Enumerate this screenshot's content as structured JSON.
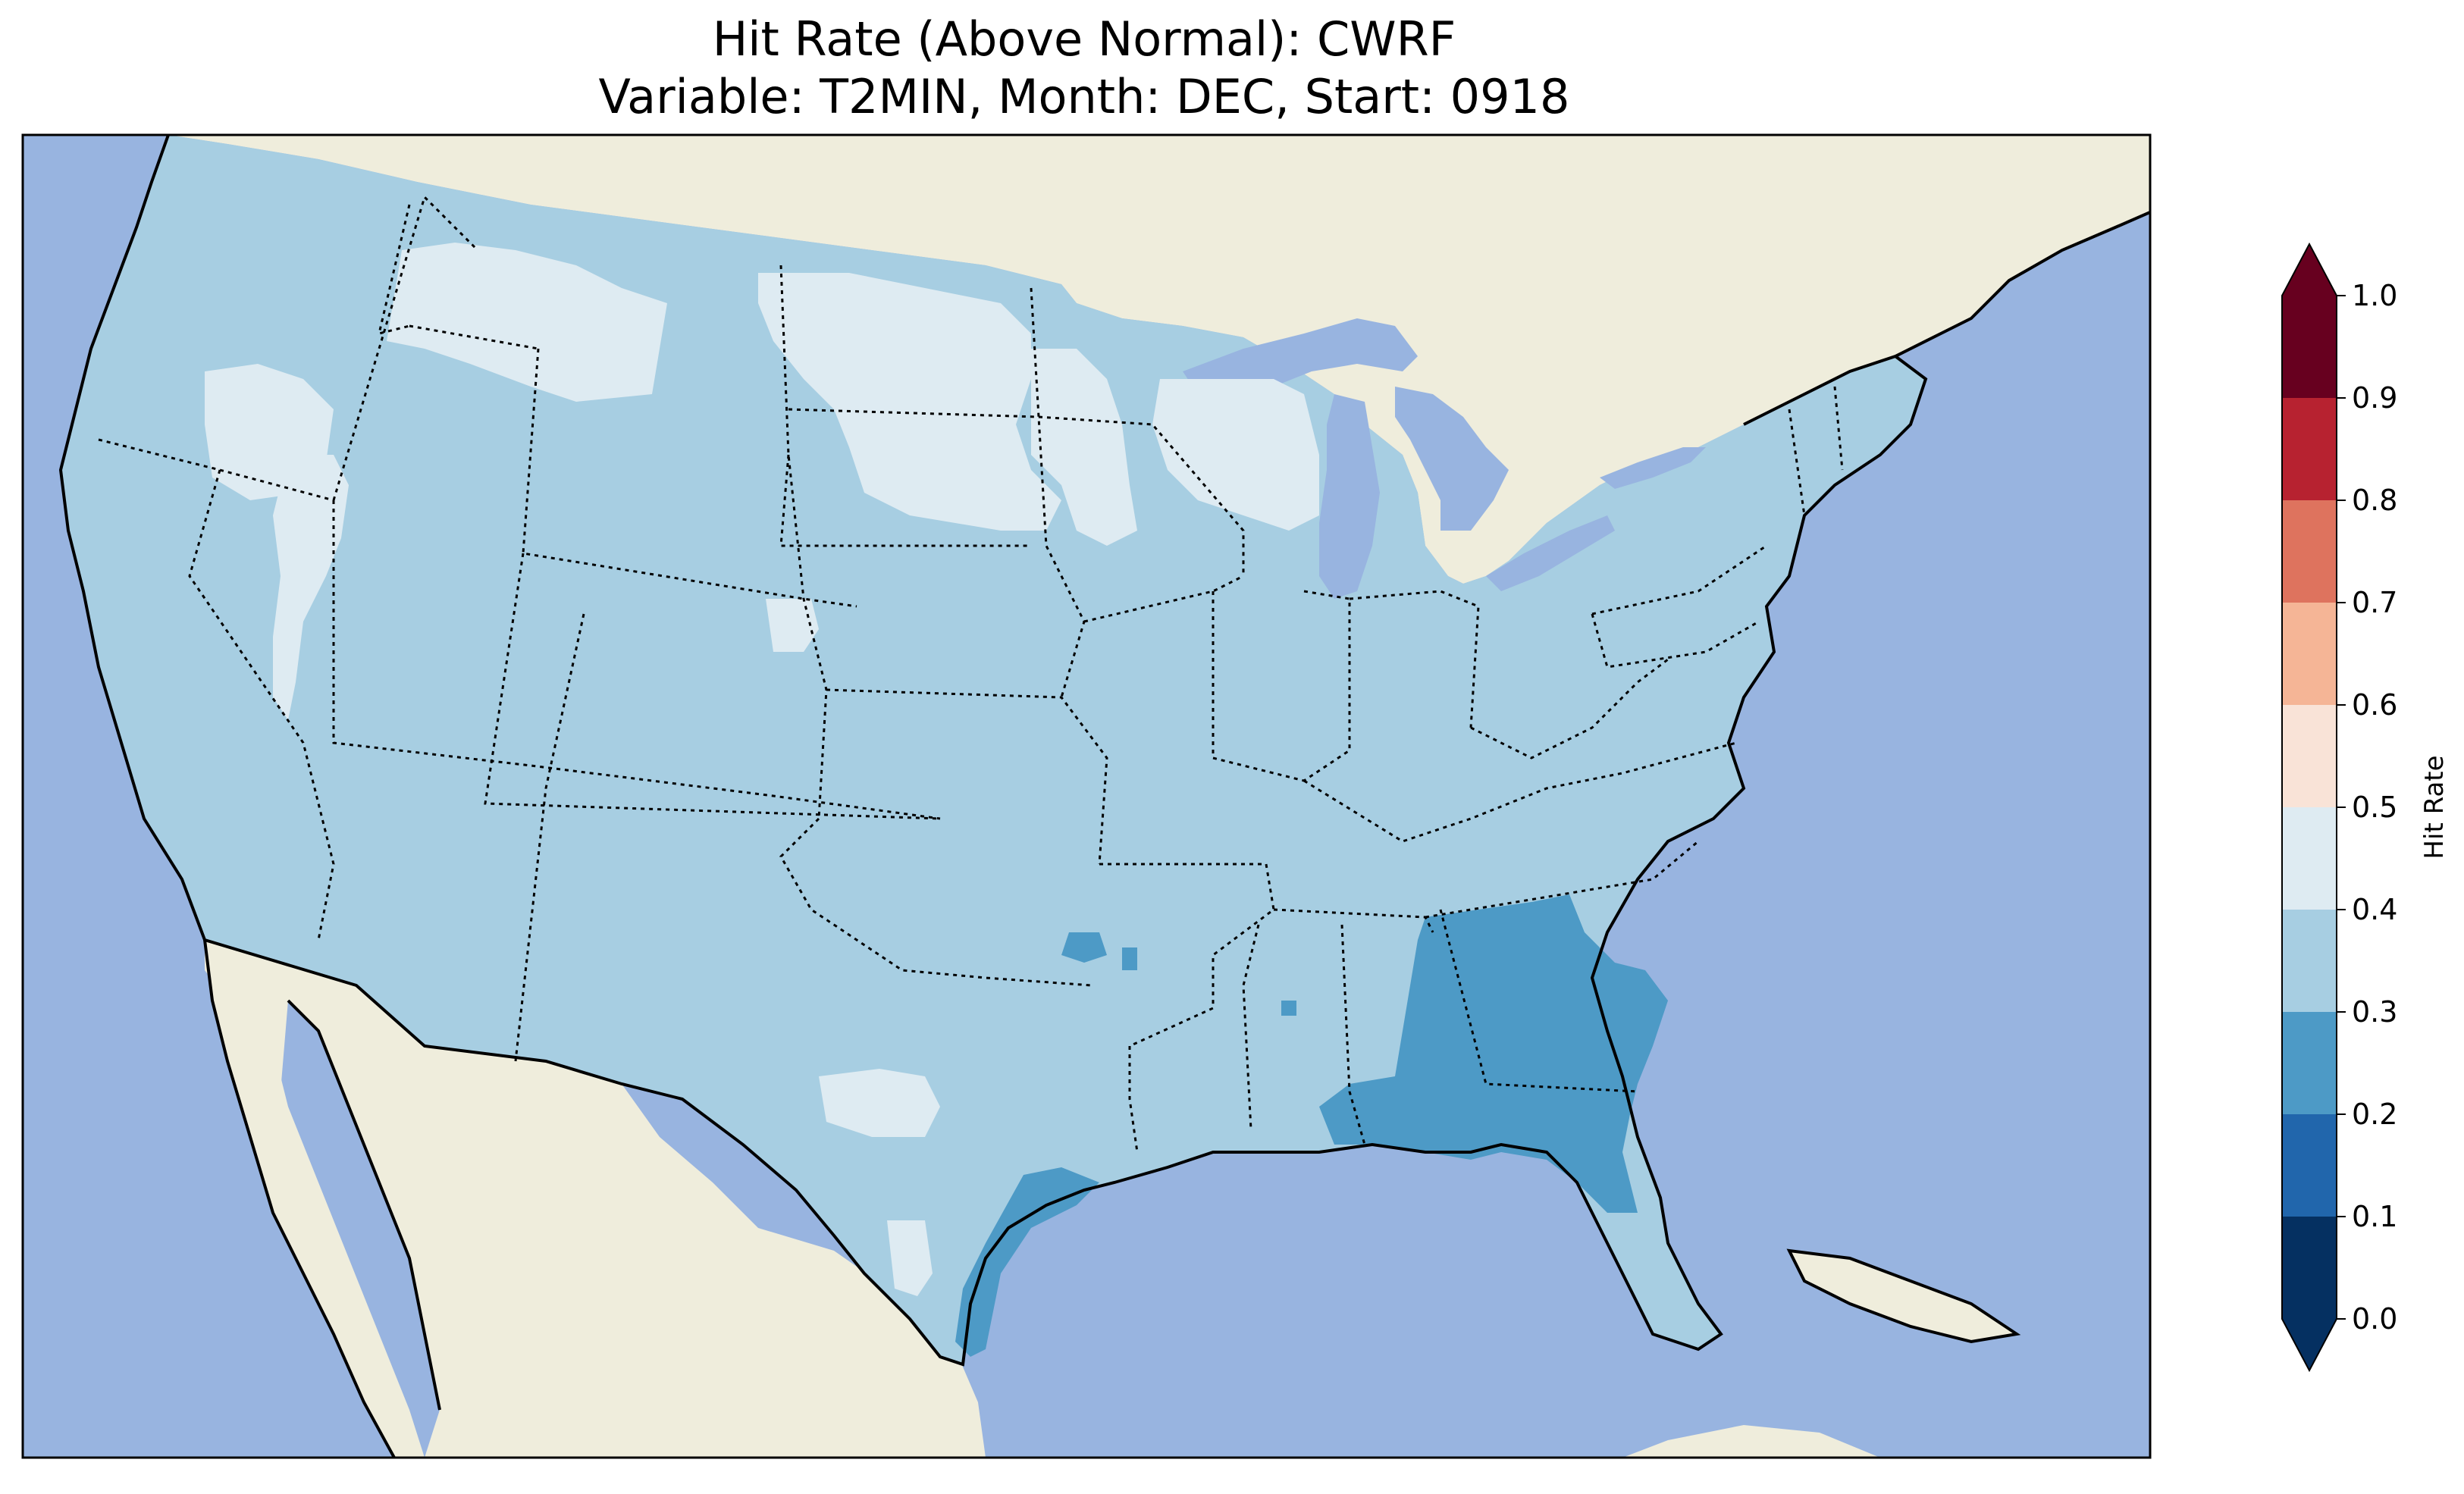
{
  "figure": {
    "title_line1": "Hit Rate (Above Normal): CWRF",
    "title_line2": "Variable: T2MIN, Month: DEC, Start: 0918"
  },
  "colors": {
    "ocean": "#98B4E0",
    "land": "#EFEDDC",
    "lakes": "#98B4E0",
    "coastline": "#000000",
    "state_border": "#000000"
  },
  "map_data": {
    "region": "Contiguous United States",
    "model": "CWRF",
    "variable": "T2MIN",
    "month": "DEC",
    "start": "0918",
    "dominant_class": "0.3–0.4",
    "regions": [
      {
        "area": "Most of CONUS",
        "class": "0.3–0.4"
      },
      {
        "area": "Northern Plains / Montana / Dakotas / Minnesota / Wisconsin / N. Nevada–Oregon",
        "class": "0.4–0.5"
      },
      {
        "area": "Georgia / N. Florida / S. Alabama / South Carolina coast / Texas Gulf coast",
        "class": "0.2–0.3"
      }
    ]
  },
  "colorbar": {
    "label": "Hit Rate",
    "ticks": [
      "0.0",
      "0.1",
      "0.2",
      "0.3",
      "0.4",
      "0.5",
      "0.6",
      "0.7",
      "0.8",
      "0.9",
      "1.0"
    ],
    "extend": "both",
    "levels": [
      {
        "from": 0.0,
        "to": 0.1,
        "color": "#053061"
      },
      {
        "from": 0.1,
        "to": 0.2,
        "color": "#2166AC"
      },
      {
        "from": 0.2,
        "to": 0.3,
        "color": "#4D9AC6"
      },
      {
        "from": 0.3,
        "to": 0.4,
        "color": "#A7CEE2"
      },
      {
        "from": 0.4,
        "to": 0.5,
        "color": "#DEEBF2"
      },
      {
        "from": 0.5,
        "to": 0.6,
        "color": "#F9E3D7"
      },
      {
        "from": 0.6,
        "to": 0.7,
        "color": "#F5B596"
      },
      {
        "from": 0.7,
        "to": 0.8,
        "color": "#DE735E"
      },
      {
        "from": 0.8,
        "to": 0.9,
        "color": "#B72230"
      },
      {
        "from": 0.9,
        "to": 1.0,
        "color": "#67001F"
      }
    ]
  }
}
